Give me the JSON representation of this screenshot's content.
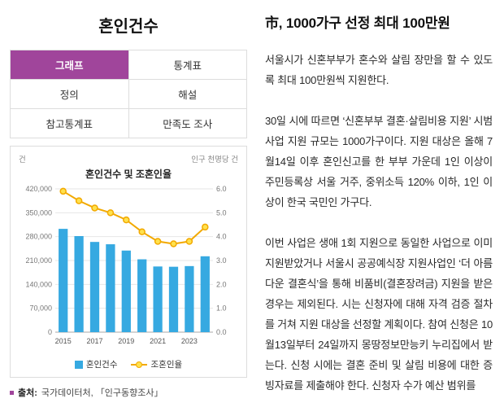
{
  "colors": {
    "accent": "#a0459b"
  },
  "widget": {
    "title": "혼인건수",
    "tabs": [
      {
        "label": "그래프",
        "active": true
      },
      {
        "label": "통계표",
        "active": false
      },
      {
        "label": "정의",
        "active": false
      },
      {
        "label": "해설",
        "active": false
      },
      {
        "label": "참고통계표",
        "active": false
      },
      {
        "label": "만족도 조사",
        "active": false
      }
    ],
    "unit_left": "건",
    "unit_right": "인구 천명당 건",
    "source_label": "출처:",
    "source_text": "국가데이터처, 「인구동향조사」"
  },
  "chart_data": {
    "type": "bar",
    "title": "혼인건수 및 조혼인율",
    "x": [
      2015,
      2016,
      2017,
      2018,
      2019,
      2020,
      2021,
      2022,
      2023,
      2024
    ],
    "x_tick_labels": [
      "2015",
      "2017",
      "2019",
      "2021",
      "2023"
    ],
    "series": [
      {
        "name": "혼인건수",
        "type": "bar",
        "axis": "left",
        "color": "#36a9e1",
        "values": [
          302828,
          281635,
          264455,
          257622,
          239159,
          213502,
          192507,
          191690,
          193657,
          222412
        ]
      },
      {
        "name": "조혼인율",
        "type": "line",
        "axis": "right",
        "color": "#f2a900",
        "marker_fill": "#ffe14d",
        "values": [
          5.9,
          5.5,
          5.2,
          5.0,
          4.7,
          4.2,
          3.8,
          3.7,
          3.8,
          4.4
        ]
      }
    ],
    "left_axis": {
      "min": 0,
      "max": 420000,
      "step": 70000,
      "ticks": [
        "0",
        "70,000",
        "140,000",
        "210,000",
        "280,000",
        "350,000",
        "420,000"
      ]
    },
    "right_axis": {
      "min": 0,
      "max": 6.0,
      "step": 1.0,
      "ticks": [
        "0.0",
        "1.0",
        "2.0",
        "3.0",
        "4.0",
        "5.0",
        "6.0"
      ]
    },
    "grid": true,
    "legend_position": "bottom"
  },
  "article": {
    "headline": "市, 1000가구 선정 최대 100만원",
    "paragraphs": [
      "서울시가 신혼부부가 혼수와 살림 장만을 할 수 있도록 최대 100만원씩 지원한다.",
      "30일 시에 따르면 ‘신혼부부 결혼·살림비용 지원’ 시범사업 지원 규모는 1000가구이다. 지원 대상은 올해 7월14일 이후 혼인신고를 한 부부 가운데 1인 이상이 주민등록상 서울 거주, 중위소득 120% 이하, 1인 이상이 한국 국민인 가구다.",
      "이번 사업은 생애 1회 지원으로 동일한 사업으로 이미 지원받았거나 서울시 공공예식장 지원사업인 ‘더 아름다운 결혼식’을 통해 비품비(결혼장려금) 지원을 받은 경우는 제외된다. 시는 신청자에 대해 자격 검증 절차를 거쳐 지원 대상을 선정할 계획이다. 참여 신청은 10월13일부터 24일까지 몽땅정보만능키 누리집에서 받는다. 신청 시에는 결혼 준비 및 살림 비용에 대한 증빙자료를 제출해야 한다. 신청자 수가 예산 범위를"
    ]
  }
}
